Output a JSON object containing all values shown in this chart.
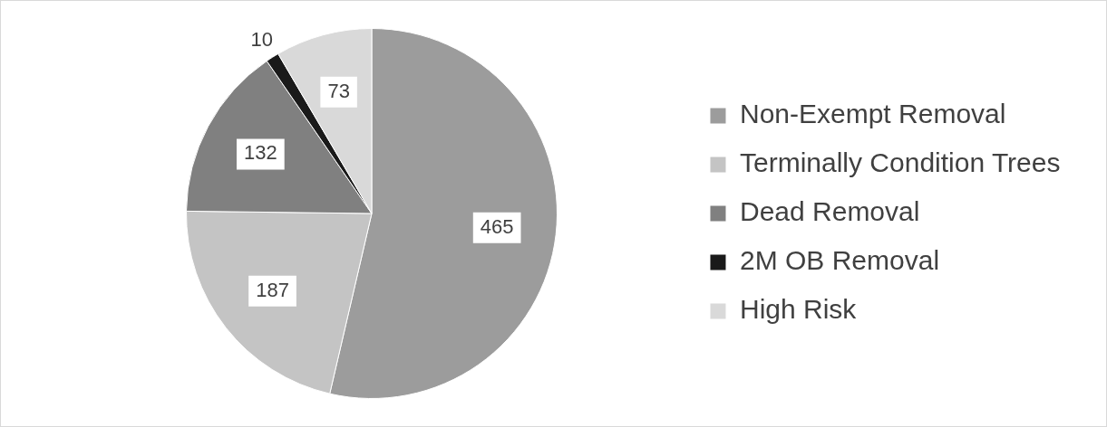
{
  "chart_data": {
    "type": "pie",
    "categories": [
      "Non-Exempt Removal",
      "Terminally Condition Trees",
      "Dead Removal",
      "2M OB Removal",
      "High Risk"
    ],
    "values": [
      465,
      187,
      132,
      10,
      73
    ],
    "colors": [
      "#9c9c9c",
      "#c4c4c4",
      "#808080",
      "#1a1a1a",
      "#d9d9d9"
    ],
    "data_labels": true,
    "legend": "right"
  }
}
